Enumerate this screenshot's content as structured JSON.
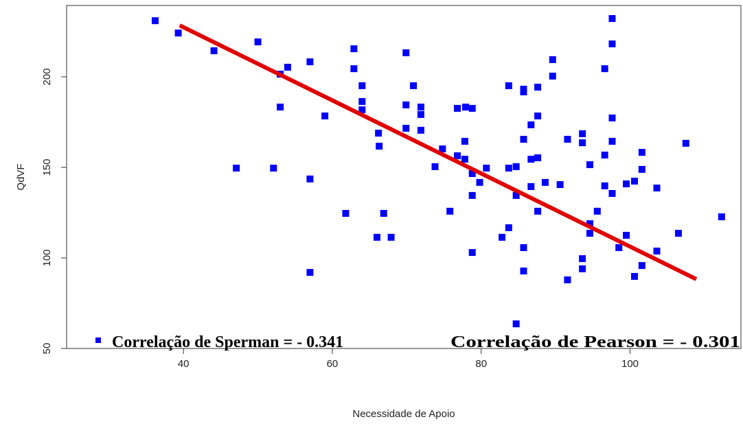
{
  "chart_data": {
    "type": "scatter",
    "x_label": "Necessidade de Apoio",
    "y_label": "QdVF",
    "series": [
      {
        "name": "Correlação de Sperman = - 0.341",
        "color": "#0000ff",
        "x": [
          36.2,
          39.3,
          44.1,
          50.0,
          47.1,
          53.0,
          54.0,
          53.0,
          52.1,
          57.0,
          57.0,
          57.0,
          59.0,
          61.8,
          62.9,
          62.9,
          64.0,
          64.0,
          64.0,
          66.0,
          66.9,
          67.9,
          66.2,
          66.3,
          69.9,
          69.9,
          69.9,
          70.9,
          71.9,
          71.9,
          71.9,
          74.8,
          73.8,
          75.8,
          76.8,
          76.8,
          77.9,
          78.8,
          77.8,
          77.8,
          78.8,
          78.8,
          78.8,
          79.8,
          80.7,
          82.8,
          83.7,
          83.7,
          83.7,
          84.7,
          84.7,
          84.7,
          85.7,
          85.7,
          85.7,
          85.7,
          85.7,
          86.7,
          86.7,
          86.7,
          87.6,
          87.6,
          87.6,
          87.6,
          88.6,
          89.6,
          89.6,
          90.6,
          91.6,
          91.6,
          93.6,
          93.6,
          93.6,
          93.6,
          94.6,
          94.6,
          94.6,
          95.6,
          96.6,
          96.6,
          96.6,
          97.6,
          97.6,
          97.6,
          97.6,
          97.6,
          98.5,
          99.5,
          99.5,
          100.6,
          100.6,
          101.6,
          101.6,
          101.6,
          103.6,
          103.6,
          106.5,
          107.5,
          112.3
        ],
        "values": [
          231.0,
          224.2,
          214.4,
          219.3,
          149.6,
          201.5,
          205.3,
          183.3,
          149.6,
          208.3,
          143.6,
          92.0,
          178.4,
          124.6,
          215.5,
          204.5,
          195.1,
          186.4,
          181.8,
          111.4,
          124.6,
          111.4,
          168.9,
          161.7,
          213.3,
          184.5,
          171.6,
          195.1,
          183.3,
          179.2,
          170.5,
          160.2,
          150.4,
          125.8,
          156.4,
          182.6,
          183.3,
          182.6,
          164.4,
          154.5,
          146.6,
          134.5,
          103.0,
          141.7,
          149.6,
          111.4,
          116.7,
          195.1,
          149.6,
          150.4,
          134.5,
          63.6,
          193.2,
          191.7,
          165.5,
          105.7,
          92.8,
          173.5,
          154.5,
          139.4,
          194.3,
          178.4,
          155.3,
          125.8,
          141.7,
          209.5,
          200.4,
          140.5,
          165.5,
          87.9,
          168.6,
          163.6,
          99.6,
          94.0,
          151.5,
          118.9,
          113.6,
          125.8,
          204.5,
          156.8,
          139.8,
          232.2,
          218.2,
          177.3,
          164.4,
          135.6,
          105.7,
          140.9,
          112.5,
          142.4,
          89.8,
          158.3,
          148.9,
          95.8,
          138.6,
          103.8,
          113.6,
          163.3,
          122.7
        ]
      }
    ],
    "fit_line": {
      "x": [
        39.5,
        108.9
      ],
      "values": [
        228.4,
        88.3
      ],
      "color": "#e00000"
    },
    "annotations": [
      "Correlação de Pearson = - 0.301"
    ],
    "xlim": [
      24.3,
      114.9
    ],
    "ylim": [
      50,
      239.4
    ],
    "xticks": [
      40,
      60,
      80,
      100
    ],
    "yticks": [
      50,
      100,
      150,
      200
    ]
  }
}
